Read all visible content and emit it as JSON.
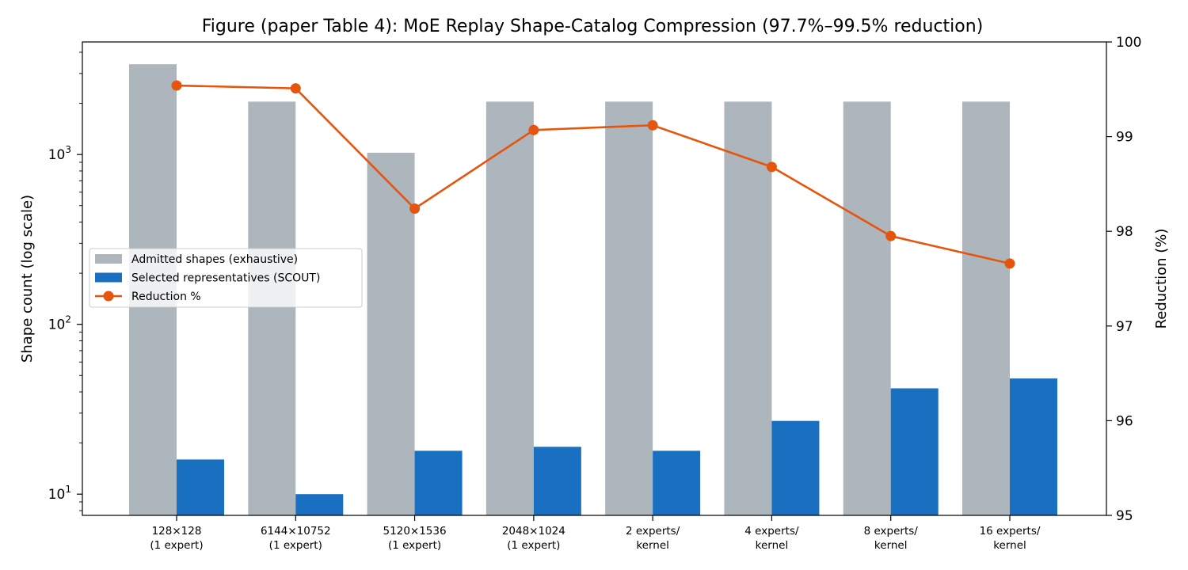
{
  "chart_data": {
    "type": "bar",
    "title": "Figure (paper Table 4): MoE Replay Shape-Catalog Compression (97.7%–99.5% reduction)",
    "categories": [
      [
        "128×128",
        "(1 expert)"
      ],
      [
        "6144×10752",
        "(1 expert)"
      ],
      [
        "5120×1536",
        "(1 expert)"
      ],
      [
        "2048×1024",
        "(1 expert)"
      ],
      [
        "2 experts/",
        "kernel"
      ],
      [
        "4 experts/",
        "kernel"
      ],
      [
        "8 experts/",
        "kernel"
      ],
      [
        "16 experts/",
        "kernel"
      ]
    ],
    "series": [
      {
        "name": "Admitted shapes (exhaustive)",
        "kind": "bar",
        "axis": "left",
        "color": "#adb5bd",
        "values": [
          3400,
          2048,
          1024,
          2048,
          2048,
          2048,
          2048,
          2048
        ]
      },
      {
        "name": "Selected representatives (SCOUT)",
        "kind": "bar",
        "axis": "left",
        "color": "#1a70c0",
        "values": [
          16,
          10,
          18,
          19,
          18,
          27,
          42,
          48
        ]
      },
      {
        "name": "Reduction %",
        "kind": "line",
        "axis": "right",
        "color": "#e6550d",
        "values": [
          99.54,
          99.51,
          98.24,
          99.07,
          99.12,
          98.68,
          97.95,
          97.66
        ]
      }
    ],
    "ylabel_left": "Shape count (log scale)",
    "ylabel_right": "Reduction (%)",
    "yscale_left": "log",
    "ylim_left": [
      7.5,
      4600
    ],
    "yticks_left": [
      {
        "value": 10,
        "base": "10",
        "exp": "1"
      },
      {
        "value": 100,
        "base": "10",
        "exp": "2"
      },
      {
        "value": 1000,
        "base": "10",
        "exp": "3"
      }
    ],
    "ylim_right": [
      95,
      100
    ],
    "yticks_right": [
      "95",
      "96",
      "97",
      "98",
      "99",
      "100"
    ],
    "ylabel_right_color": "#e6550d",
    "legend_position": "center-left",
    "grid": false
  }
}
